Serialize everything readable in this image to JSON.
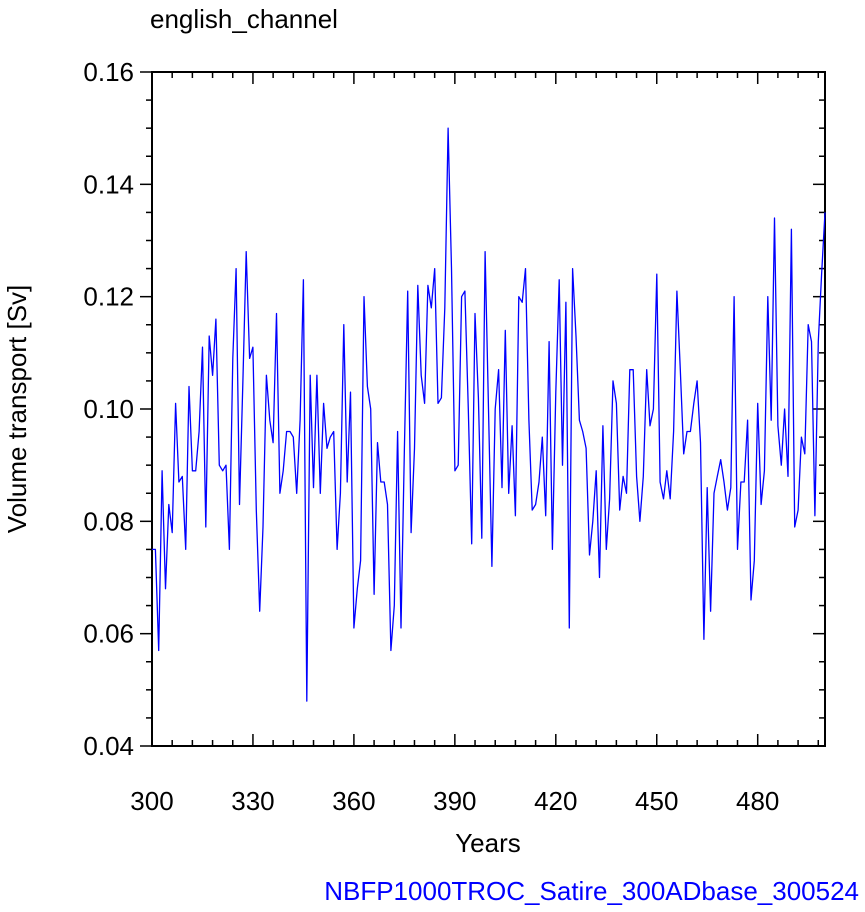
{
  "chart_data": {
    "type": "line",
    "title": "english_channel",
    "xlabel": "Years",
    "ylabel": "Volume transport [Sv]",
    "footer": "NBFP1000TROC_Satire_300ADbase_300524",
    "xlim": [
      300,
      500
    ],
    "ylim": [
      0.04,
      0.16
    ],
    "xticks": [
      300,
      330,
      360,
      390,
      420,
      450,
      480
    ],
    "xtick_labels": [
      "300",
      "330",
      "360",
      "390",
      "420",
      "450",
      "480"
    ],
    "yticks": [
      0.04,
      0.06,
      0.08,
      0.1,
      0.12,
      0.14,
      0.16
    ],
    "ytick_labels": [
      "0.04",
      "0.06",
      "0.08",
      "0.10",
      "0.12",
      "0.14",
      "0.16"
    ],
    "grid": false,
    "series": [
      {
        "color": "#0000ff",
        "x": [
          300,
          301,
          302,
          303,
          304,
          305,
          306,
          307,
          308,
          309,
          310,
          311,
          312,
          313,
          314,
          315,
          316,
          317,
          318,
          319,
          320,
          321,
          322,
          323,
          324,
          325,
          326,
          327,
          328,
          329,
          330,
          331,
          332,
          333,
          334,
          335,
          336,
          337,
          338,
          339,
          340,
          341,
          342,
          343,
          344,
          345,
          346,
          347,
          348,
          349,
          350,
          351,
          352,
          353,
          354,
          355,
          356,
          357,
          358,
          359,
          360,
          361,
          362,
          363,
          364,
          365,
          366,
          367,
          368,
          369,
          370,
          371,
          372,
          373,
          374,
          375,
          376,
          377,
          378,
          379,
          380,
          381,
          382,
          383,
          384,
          385,
          386,
          387,
          388,
          389,
          390,
          391,
          392,
          393,
          394,
          395,
          396,
          397,
          398,
          399,
          400,
          401,
          402,
          403,
          404,
          405,
          406,
          407,
          408,
          409,
          410,
          411,
          412,
          413,
          414,
          415,
          416,
          417,
          418,
          419,
          420,
          421,
          422,
          423,
          424,
          425,
          426,
          427,
          428,
          429,
          430,
          431,
          432,
          433,
          434,
          435,
          436,
          437,
          438,
          439,
          440,
          441,
          442,
          443,
          444,
          445,
          446,
          447,
          448,
          449,
          450,
          451,
          452,
          453,
          454,
          455,
          456,
          457,
          458,
          459,
          460,
          461,
          462,
          463,
          464,
          465,
          466,
          467,
          468,
          469,
          470,
          471,
          472,
          473,
          474,
          475,
          476,
          477,
          478,
          479,
          480,
          481,
          482,
          483,
          484,
          485,
          486,
          487,
          488,
          489,
          490,
          491,
          492,
          493,
          494,
          495,
          496,
          497,
          498,
          499,
          500
        ],
        "y": [
          0.075,
          0.075,
          0.057,
          0.089,
          0.068,
          0.083,
          0.078,
          0.101,
          0.087,
          0.088,
          0.075,
          0.104,
          0.089,
          0.089,
          0.096,
          0.111,
          0.079,
          0.113,
          0.106,
          0.116,
          0.09,
          0.089,
          0.09,
          0.075,
          0.109,
          0.125,
          0.083,
          0.105,
          0.128,
          0.109,
          0.111,
          0.082,
          0.064,
          0.079,
          0.106,
          0.098,
          0.094,
          0.117,
          0.085,
          0.089,
          0.096,
          0.096,
          0.095,
          0.085,
          0.098,
          0.123,
          0.048,
          0.106,
          0.086,
          0.106,
          0.085,
          0.101,
          0.093,
          0.095,
          0.096,
          0.075,
          0.085,
          0.115,
          0.087,
          0.103,
          0.061,
          0.068,
          0.073,
          0.12,
          0.104,
          0.1,
          0.067,
          0.094,
          0.087,
          0.087,
          0.083,
          0.057,
          0.065,
          0.096,
          0.061,
          0.093,
          0.121,
          0.078,
          0.093,
          0.122,
          0.106,
          0.101,
          0.122,
          0.118,
          0.125,
          0.101,
          0.102,
          0.118,
          0.15,
          0.125,
          0.089,
          0.09,
          0.12,
          0.121,
          0.1,
          0.076,
          0.117,
          0.102,
          0.077,
          0.128,
          0.1,
          0.072,
          0.1,
          0.107,
          0.086,
          0.114,
          0.085,
          0.097,
          0.081,
          0.12,
          0.119,
          0.125,
          0.098,
          0.082,
          0.083,
          0.087,
          0.095,
          0.081,
          0.112,
          0.075,
          0.103,
          0.123,
          0.09,
          0.119,
          0.061,
          0.125,
          0.113,
          0.098,
          0.096,
          0.093,
          0.074,
          0.08,
          0.089,
          0.07,
          0.097,
          0.075,
          0.084,
          0.105,
          0.101,
          0.082,
          0.088,
          0.085,
          0.107,
          0.107,
          0.088,
          0.08,
          0.088,
          0.107,
          0.097,
          0.1,
          0.124,
          0.087,
          0.084,
          0.089,
          0.084,
          0.096,
          0.121,
          0.107,
          0.092,
          0.096,
          0.096,
          0.101,
          0.105,
          0.094,
          0.059,
          0.086,
          0.064,
          0.085,
          0.088,
          0.091,
          0.087,
          0.082,
          0.086,
          0.12,
          0.075,
          0.087,
          0.087,
          0.098,
          0.066,
          0.073,
          0.101,
          0.083,
          0.089,
          0.12,
          0.098,
          0.134,
          0.097,
          0.09,
          0.1,
          0.088,
          0.132,
          0.079,
          0.082,
          0.095,
          0.092,
          0.115,
          0.112,
          0.081,
          0.112,
          0.124,
          0.135
        ]
      }
    ]
  },
  "colors": {
    "line": "#0000ff",
    "footer": "#0000ff",
    "axis": "#000000"
  }
}
